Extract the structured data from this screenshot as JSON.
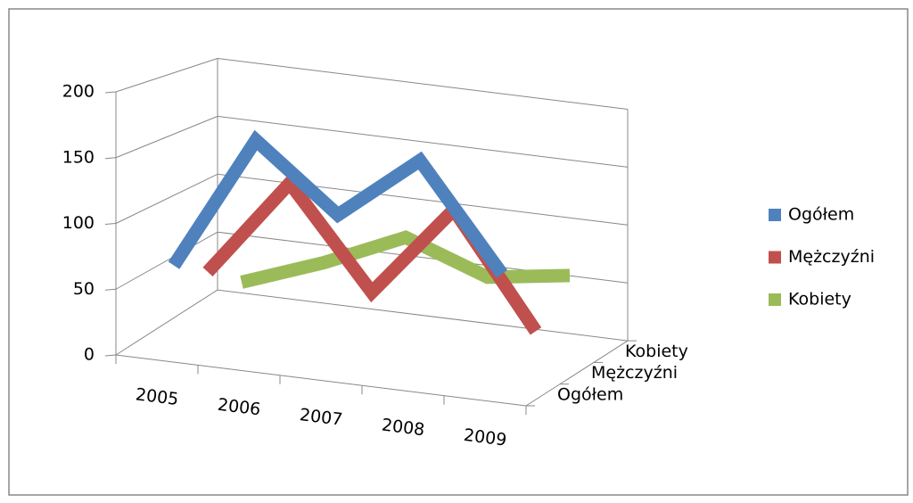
{
  "chart_data": {
    "type": "line3d",
    "categories": [
      "2005",
      "2006",
      "2007",
      "2008",
      "2009"
    ],
    "series": [
      {
        "name": "Ogółem",
        "color": "#4f81bd",
        "values": [
          65,
          170,
          120,
          170,
          90
        ]
      },
      {
        "name": "Mężczyźni",
        "color": "#c0504d",
        "values": [
          45,
          125,
          45,
          120,
          30
        ]
      },
      {
        "name": "Kobiety",
        "color": "#9bbb59",
        "values": [
          20,
          45,
          75,
          50,
          60
        ]
      }
    ],
    "ylim": [
      0,
      200
    ],
    "yticks": [
      0,
      50,
      100,
      150,
      200
    ],
    "grid": true,
    "legend": "right"
  }
}
